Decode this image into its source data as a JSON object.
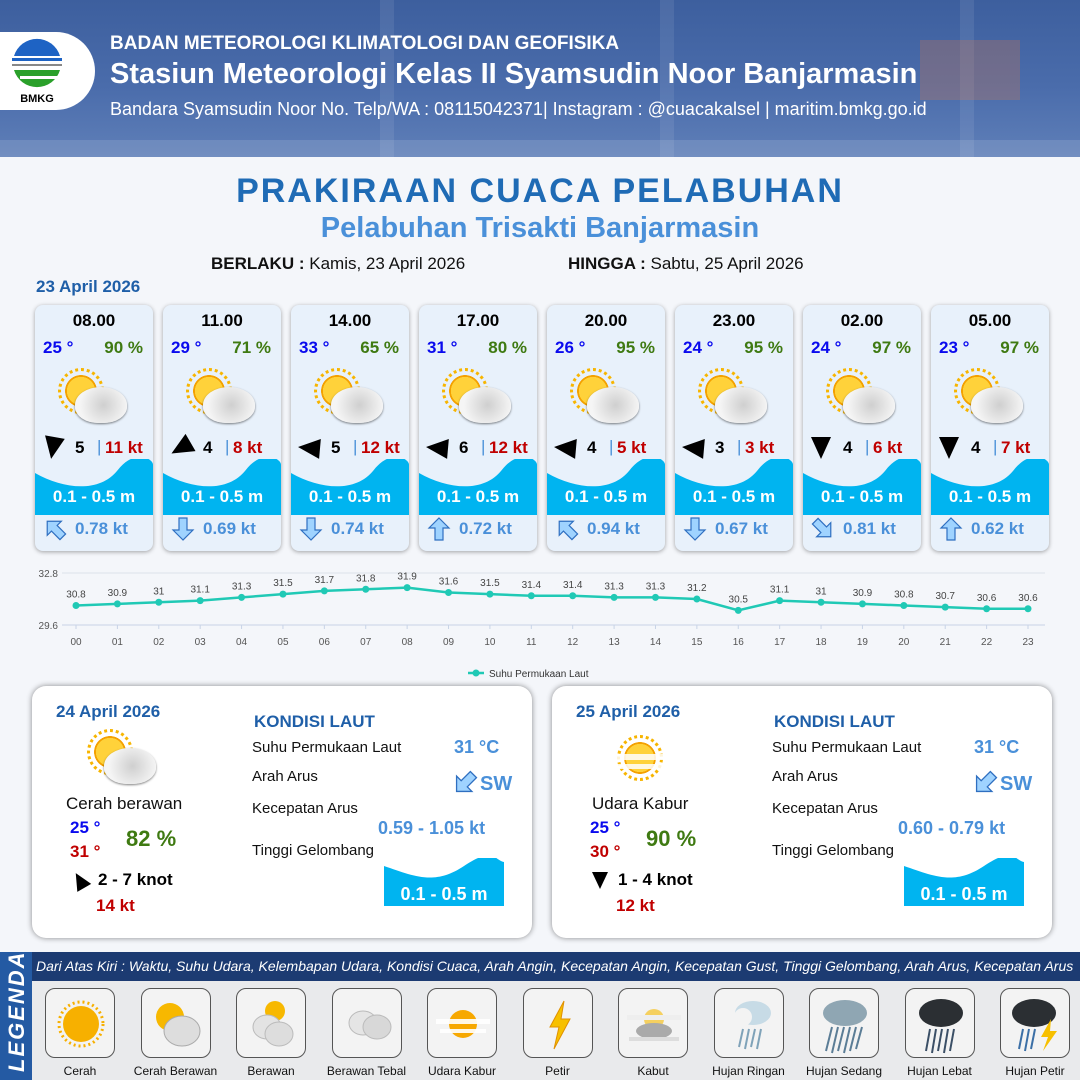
{
  "header": {
    "agency": "BADAN METEOROLOGI KLIMATOLOGI DAN GEOFISIKA",
    "station": "Stasiun Meteorologi Kelas II Syamsudin Noor Banjarmasin",
    "contact": "Bandara Syamsudin Noor No. Telp/WA : 08115042371| Instagram : @cuacakalsel | maritim.bmkg.go.id",
    "logo_text": "BMKG"
  },
  "title": "PRAKIRAAN CUACA PELABUHAN",
  "subtitle": "Pelabuhan Trisakti Banjarmasin",
  "validity": {
    "from_label": "BERLAKU :",
    "from_value": "Kamis, 23 April 2026",
    "to_label": "HINGGA :",
    "to_value": "Sabtu, 25 April 2026"
  },
  "day1_date": "23 April 2026",
  "forecasts": [
    {
      "time": "08.00",
      "temp": "25 °",
      "humidity": "90 %",
      "weather_icon": "cerah-berawan",
      "wind_dir_deg": 190,
      "wind_speed": "5",
      "gust": "11 kt",
      "wave": "0.1 - 0.5 m",
      "current_dir_deg": 315,
      "current_speed": "0.78 kt"
    },
    {
      "time": "11.00",
      "temp": "29 °",
      "humidity": "71 %",
      "weather_icon": "cerah-berawan",
      "wind_dir_deg": 240,
      "wind_speed": "4",
      "gust": "8 kt",
      "wave": "0.1 - 0.5 m",
      "current_dir_deg": 180,
      "current_speed": "0.69 kt"
    },
    {
      "time": "14.00",
      "temp": "33 °",
      "humidity": "65 %",
      "weather_icon": "cerah-berawan",
      "wind_dir_deg": 275,
      "wind_speed": "5",
      "gust": "12 kt",
      "wave": "0.1 - 0.5 m",
      "current_dir_deg": 180,
      "current_speed": "0.74 kt"
    },
    {
      "time": "17.00",
      "temp": "31 °",
      "humidity": "80 %",
      "weather_icon": "cerah-berawan",
      "wind_dir_deg": 275,
      "wind_speed": "6",
      "gust": "12 kt",
      "wave": "0.1 - 0.5 m",
      "current_dir_deg": 0,
      "current_speed": "0.72 kt"
    },
    {
      "time": "20.00",
      "temp": "26 °",
      "humidity": "95 %",
      "weather_icon": "cerah-berawan",
      "wind_dir_deg": 275,
      "wind_speed": "4",
      "gust": "5 kt",
      "wave": "0.1 - 0.5 m",
      "current_dir_deg": 315,
      "current_speed": "0.94 kt"
    },
    {
      "time": "23.00",
      "temp": "24 °",
      "humidity": "95 %",
      "weather_icon": "cerah-berawan",
      "wind_dir_deg": 275,
      "wind_speed": "3",
      "gust": "3 kt",
      "wave": "0.1 - 0.5 m",
      "current_dir_deg": 180,
      "current_speed": "0.67 kt"
    },
    {
      "time": "02.00",
      "temp": "24 °",
      "humidity": "97 %",
      "weather_icon": "cerah-berawan",
      "wind_dir_deg": 180,
      "wind_speed": "4",
      "gust": "6 kt",
      "wave": "0.1 - 0.5 m",
      "current_dir_deg": 135,
      "current_speed": "0.81 kt"
    },
    {
      "time": "05.00",
      "temp": "23 °",
      "humidity": "97 %",
      "weather_icon": "cerah-berawan",
      "wind_dir_deg": 180,
      "wind_speed": "4",
      "gust": "7 kt",
      "wave": "0.1 - 0.5 m",
      "current_dir_deg": 0,
      "current_speed": "0.62 kt"
    }
  ],
  "chart_data": {
    "type": "line",
    "categories": [
      "00",
      "01",
      "02",
      "03",
      "04",
      "05",
      "06",
      "07",
      "08",
      "09",
      "10",
      "11",
      "12",
      "13",
      "14",
      "15",
      "16",
      "17",
      "18",
      "19",
      "20",
      "21",
      "22",
      "23"
    ],
    "series": [
      {
        "name": "Suhu Permukaan Laut",
        "color": "#20c9b5",
        "values": [
          30.8,
          30.9,
          31.0,
          31.1,
          31.3,
          31.5,
          31.7,
          31.8,
          31.9,
          31.6,
          31.5,
          31.4,
          31.4,
          31.3,
          31.3,
          31.2,
          30.5,
          31.1,
          31.0,
          30.9,
          30.8,
          30.7,
          30.6,
          30.6
        ]
      }
    ],
    "ylim": [
      29.6,
      32.8
    ],
    "yticks": [
      "29.6",
      "32.8"
    ],
    "legend": "bottom",
    "grid": true
  },
  "days": [
    {
      "date": "24 April 2026",
      "weather_icon": "cerah-berawan",
      "condition": "Cerah berawan",
      "tmin": "25 °",
      "tmax": "31 °",
      "humidity": "82 %",
      "wind_dir_deg": 330,
      "wind": "2  - 7 knot",
      "gust": "14 kt",
      "sea": {
        "heading": "KONDISI LAUT",
        "sst_label": "Suhu Permukaan Laut",
        "sst": "31 °C",
        "dir_label": "Arah Arus",
        "dir": "SW",
        "speed_label": "Kecepatan Arus",
        "speed": "0.59 - 1.05 kt",
        "wave_label": "Tinggi Gelombang",
        "wave": "0.1 - 0.5 m"
      }
    },
    {
      "date": "25 April 2026",
      "weather_icon": "udara-kabur",
      "condition": "Udara Kabur",
      "tmin": "25 °",
      "tmax": "30 °",
      "humidity": "90 %",
      "wind_dir_deg": 180,
      "wind": "1  - 4 knot",
      "gust": "12 kt",
      "sea": {
        "heading": "KONDISI LAUT",
        "sst_label": "Suhu Permukaan Laut",
        "sst": "31 °C",
        "dir_label": "Arah Arus",
        "dir": "SW",
        "speed_label": "Kecepatan Arus",
        "speed": "0.60 - 0.79 kt",
        "wave_label": "Tinggi Gelombang",
        "wave": "0.1 - 0.5 m"
      }
    }
  ],
  "legend": {
    "title": "LEGENDA",
    "caption": "Dari Atas Kiri : Waktu, Suhu Udara, Kelembapan Udara, Kondisi Cuaca, Arah Angin, Kecepatan Angin, Kecepatan Gust, Tinggi Gelombang, Arah Arus, Kecepatan Arus",
    "items": [
      {
        "label": "Cerah",
        "icon": "cerah"
      },
      {
        "label": "Cerah Berawan",
        "icon": "cerah-berawan"
      },
      {
        "label": "Berawan",
        "icon": "berawan"
      },
      {
        "label": "Berawan Tebal",
        "icon": "berawan-tebal"
      },
      {
        "label": "Udara Kabur",
        "icon": "udara-kabur"
      },
      {
        "label": "Petir",
        "icon": "petir"
      },
      {
        "label": "Kabut",
        "icon": "kabut"
      },
      {
        "label": "Hujan Ringan",
        "icon": "hujan-ringan"
      },
      {
        "label": "Hujan Sedang",
        "icon": "hujan-sedang"
      },
      {
        "label": "Hujan Lebat",
        "icon": "hujan-lebat"
      },
      {
        "label": "Hujan Petir",
        "icon": "hujan-petir"
      }
    ]
  }
}
